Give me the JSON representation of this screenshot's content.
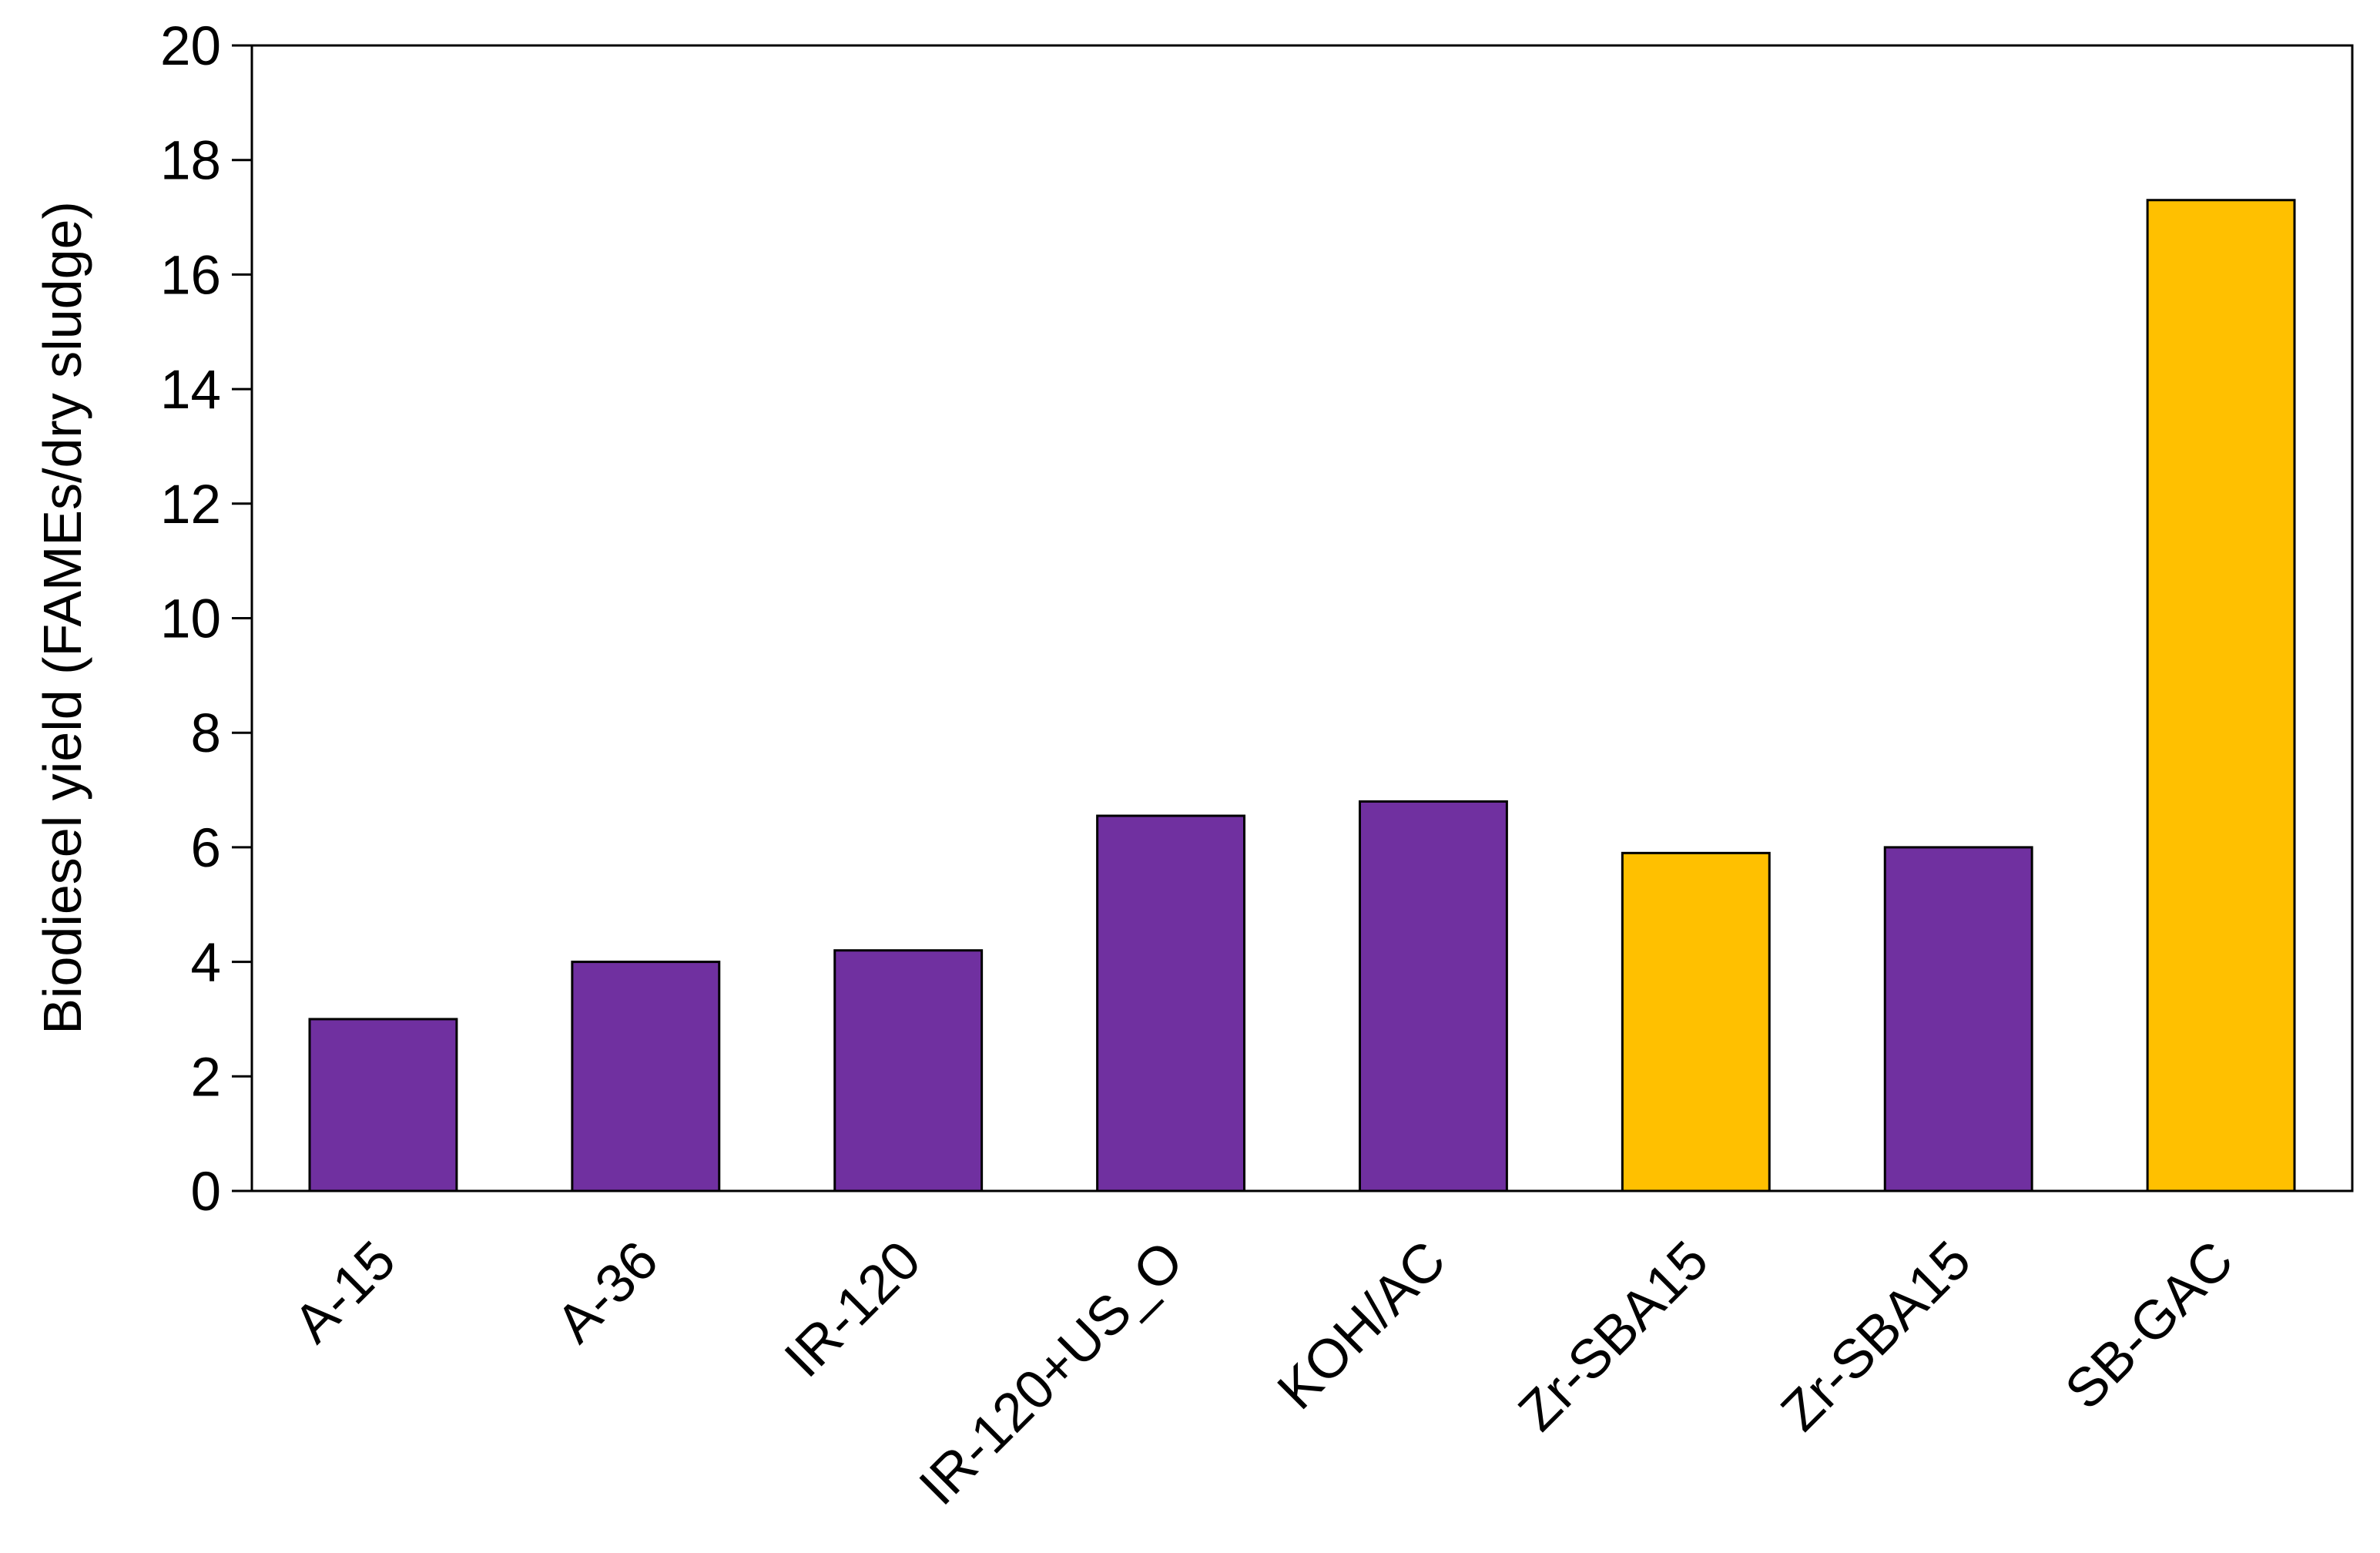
{
  "chart_data": {
    "type": "bar",
    "y_label": "Biodiesel yield (FAMEs/dry sludge)",
    "categories": [
      "A-15",
      "A-36",
      "IR-120",
      "IR-120+US_O",
      "KOH/AC",
      "Zr-SBA15",
      "Zr-SBA15",
      "SB-GAC"
    ],
    "values": [
      3.0,
      4.0,
      4.2,
      6.55,
      6.8,
      5.9,
      6.0,
      17.3
    ],
    "colors": [
      "#7030a0",
      "#7030a0",
      "#7030a0",
      "#7030a0",
      "#7030a0",
      "#ffc000",
      "#7030a0",
      "#ffc000"
    ],
    "ylim": [
      0,
      20
    ],
    "yticks": [
      0,
      2,
      4,
      6,
      8,
      10,
      12,
      14,
      16,
      18,
      20
    ],
    "grid": false
  }
}
